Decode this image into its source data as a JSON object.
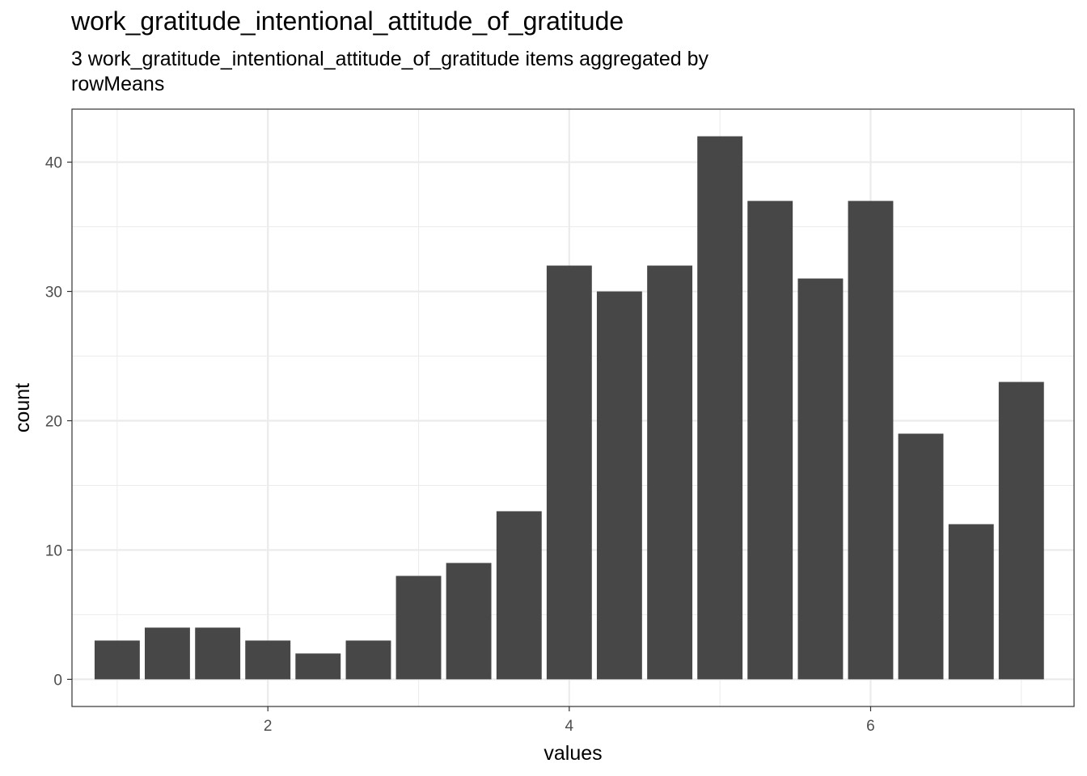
{
  "chart_data": {
    "type": "bar",
    "title": "work_gratitude_intentional_attitude_of_gratitude",
    "subtitle_lines": [
      "3 work_gratitude_intentional_attitude_of_gratitude items aggregated by",
      "rowMeans"
    ],
    "xlabel": "values",
    "ylabel": "count",
    "x": [
      1.0,
      1.333,
      1.667,
      2.0,
      2.333,
      2.667,
      3.0,
      3.333,
      3.667,
      4.0,
      4.333,
      4.667,
      5.0,
      5.333,
      5.667,
      6.0,
      6.333,
      6.667,
      7.0
    ],
    "values": [
      3,
      4,
      4,
      3,
      2,
      3,
      8,
      9,
      13,
      32,
      30,
      32,
      42,
      37,
      31,
      37,
      19,
      12,
      23
    ],
    "bin_width": 0.3333,
    "xlim": [
      0.7,
      7.35
    ],
    "ylim": [
      -2.1,
      44.1
    ],
    "x_ticks": [
      2,
      4,
      6
    ],
    "y_ticks": [
      0,
      10,
      20,
      30,
      40
    ],
    "grid": true,
    "bar_color": "#474747",
    "panel_border_color": "#333333",
    "grid_color": "#ebebeb"
  }
}
